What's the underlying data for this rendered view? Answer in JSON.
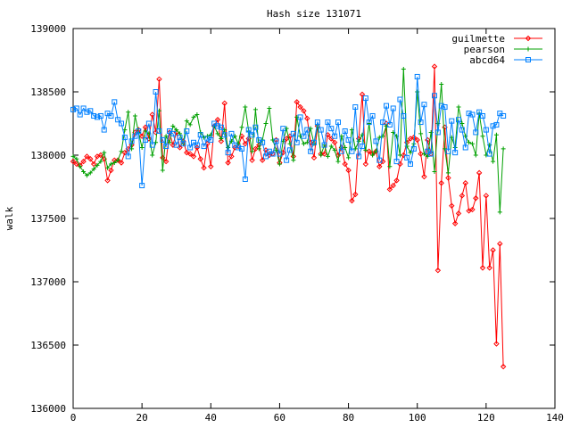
{
  "chart_data": {
    "type": "line",
    "title": "Hash size 131071",
    "xlabel": "",
    "ylabel": "walk",
    "xlim": [
      0,
      140
    ],
    "ylim": [
      136000,
      139000
    ],
    "xticks": [
      0,
      20,
      40,
      60,
      80,
      100,
      120,
      140
    ],
    "yticks": [
      136000,
      136500,
      137000,
      137500,
      138000,
      138500,
      139000
    ],
    "grid": false,
    "legend_position": "top-right",
    "series": [
      {
        "name": "guilmette",
        "color": "#ff0000",
        "marker": "diamond",
        "x": [
          0,
          1,
          2,
          3,
          4,
          5,
          6,
          7,
          8,
          9,
          10,
          11,
          12,
          13,
          14,
          15,
          16,
          17,
          18,
          19,
          20,
          21,
          22,
          23,
          24,
          25,
          26,
          27,
          28,
          29,
          30,
          31,
          32,
          33,
          34,
          35,
          36,
          37,
          38,
          39,
          40,
          41,
          42,
          43,
          44,
          45,
          46,
          47,
          48,
          49,
          50,
          51,
          52,
          53,
          54,
          55,
          56,
          57,
          58,
          59,
          60,
          61,
          62,
          63,
          64,
          65,
          66,
          67,
          68,
          69,
          70,
          71,
          72,
          73,
          74,
          75,
          76,
          77,
          78,
          79,
          80,
          81,
          82,
          83,
          84,
          85,
          86,
          87,
          88,
          89,
          90,
          91,
          92,
          93,
          94,
          95,
          96,
          97,
          98,
          99,
          100,
          101,
          102,
          103,
          104,
          105,
          106,
          107,
          108,
          109,
          110,
          111,
          112,
          113,
          114,
          115,
          116,
          117,
          118,
          119,
          120,
          121,
          122,
          123,
          124,
          125
        ],
        "values": [
          137950,
          137930,
          137920,
          137950,
          137990,
          137970,
          137930,
          137990,
          138000,
          137970,
          137800,
          137880,
          137960,
          137960,
          137940,
          138020,
          138050,
          138080,
          138180,
          138200,
          138150,
          138220,
          138130,
          138320,
          138180,
          138600,
          137980,
          137950,
          138180,
          138080,
          138180,
          138060,
          138110,
          138020,
          138010,
          137990,
          138060,
          137970,
          137900,
          138090,
          137910,
          138230,
          138280,
          138110,
          138410,
          137940,
          137990,
          138060,
          138070,
          138150,
          138090,
          138130,
          137960,
          138050,
          138080,
          137960,
          138040,
          138000,
          138010,
          138120,
          137940,
          138020,
          138130,
          138150,
          137990,
          138420,
          138380,
          138350,
          138290,
          138100,
          137980,
          138230,
          138010,
          138010,
          138160,
          138130,
          138100,
          138000,
          138060,
          137930,
          137880,
          137640,
          137690,
          138130,
          138480,
          137930,
          138030,
          138010,
          138030,
          137910,
          137950,
          138250,
          137730,
          137760,
          137800,
          137930,
          138000,
          138100,
          138130,
          138140,
          138120,
          138010,
          137830,
          138120,
          138010,
          138700,
          137090,
          137780,
          138220,
          137820,
          137600,
          137460,
          137540,
          137680,
          137780,
          137560,
          137570,
          137660,
          137860,
          137110,
          137680,
          137110,
          137250,
          136510,
          137300,
          136330
        ]
      },
      {
        "name": "pearson",
        "color": "#00a000",
        "marker": "plus",
        "x": [
          0,
          1,
          2,
          3,
          4,
          5,
          6,
          7,
          8,
          9,
          10,
          11,
          12,
          13,
          14,
          15,
          16,
          17,
          18,
          19,
          20,
          21,
          22,
          23,
          24,
          25,
          26,
          27,
          28,
          29,
          30,
          31,
          32,
          33,
          34,
          35,
          36,
          37,
          38,
          39,
          40,
          41,
          42,
          43,
          44,
          45,
          46,
          47,
          48,
          49,
          50,
          51,
          52,
          53,
          54,
          55,
          56,
          57,
          58,
          59,
          60,
          61,
          62,
          63,
          64,
          65,
          66,
          67,
          68,
          69,
          70,
          71,
          72,
          73,
          74,
          75,
          76,
          77,
          78,
          79,
          80,
          81,
          82,
          83,
          84,
          85,
          86,
          87,
          88,
          89,
          90,
          91,
          92,
          93,
          94,
          95,
          96,
          97,
          98,
          99,
          100,
          101,
          102,
          103,
          104,
          105,
          106,
          107,
          108,
          109,
          110,
          111,
          112,
          113,
          114,
          115,
          116,
          117,
          118,
          119,
          120,
          121,
          122,
          123,
          124,
          125
        ],
        "values": [
          137990,
          137970,
          137910,
          137870,
          137840,
          137860,
          137890,
          137920,
          137950,
          138020,
          137900,
          137930,
          137940,
          137960,
          138030,
          138200,
          138340,
          138050,
          138310,
          138180,
          138060,
          138190,
          138170,
          138000,
          138100,
          138350,
          137880,
          138150,
          138100,
          138230,
          138200,
          138170,
          138090,
          138270,
          138240,
          138300,
          138320,
          138180,
          138140,
          138150,
          138160,
          138230,
          138170,
          138130,
          138200,
          138060,
          138110,
          138150,
          138090,
          138220,
          138380,
          138190,
          138030,
          138360,
          138050,
          138120,
          138250,
          138370,
          138120,
          138040,
          137930,
          138110,
          138210,
          138090,
          137960,
          138300,
          138150,
          138090,
          138100,
          138210,
          138090,
          138240,
          138000,
          138080,
          137990,
          138070,
          138040,
          137950,
          138150,
          138060,
          137980,
          138200,
          138050,
          138110,
          138160,
          138040,
          138250,
          138000,
          138030,
          138140,
          138150,
          138230,
          137910,
          138180,
          138150,
          138000,
          138680,
          138070,
          138020,
          138090,
          138500,
          138170,
          138010,
          137990,
          138180,
          137870,
          138250,
          138560,
          138050,
          137860,
          138140,
          138060,
          138380,
          138250,
          138150,
          138100,
          138090,
          138000,
          138330,
          138150,
          138000,
          138080,
          137950,
          138160,
          137550,
          138050
        ]
      },
      {
        "name": "abcd64",
        "color": "#0080ff",
        "marker": "square",
        "x": [
          0,
          1,
          2,
          3,
          4,
          5,
          6,
          7,
          8,
          9,
          10,
          11,
          12,
          13,
          14,
          15,
          16,
          17,
          18,
          19,
          20,
          21,
          22,
          23,
          24,
          25,
          26,
          27,
          28,
          29,
          30,
          31,
          32,
          33,
          34,
          35,
          36,
          37,
          38,
          39,
          40,
          41,
          42,
          43,
          44,
          45,
          46,
          47,
          48,
          49,
          50,
          51,
          52,
          53,
          54,
          55,
          56,
          57,
          58,
          59,
          60,
          61,
          62,
          63,
          64,
          65,
          66,
          67,
          68,
          69,
          70,
          71,
          72,
          73,
          74,
          75,
          76,
          77,
          78,
          79,
          80,
          81,
          82,
          83,
          84,
          85,
          86,
          87,
          88,
          89,
          90,
          91,
          92,
          93,
          94,
          95,
          96,
          97,
          98,
          99,
          100,
          101,
          102,
          103,
          104,
          105,
          106,
          107,
          108,
          109,
          110,
          111,
          112,
          113,
          114,
          115,
          116,
          117,
          118,
          119,
          120,
          121,
          122,
          123,
          124,
          125
        ],
        "values": [
          138360,
          138370,
          138320,
          138370,
          138340,
          138350,
          138310,
          138300,
          138310,
          138200,
          138330,
          138310,
          138420,
          138280,
          138250,
          138140,
          137990,
          138110,
          138150,
          138190,
          137760,
          138120,
          138250,
          138080,
          138500,
          138190,
          138120,
          138070,
          138190,
          138170,
          138080,
          138140,
          138090,
          138190,
          138060,
          138100,
          138080,
          138160,
          138070,
          138130,
          138120,
          138250,
          138230,
          138220,
          138160,
          138020,
          138170,
          138080,
          138060,
          138050,
          137810,
          138200,
          138160,
          138220,
          138120,
          138100,
          137990,
          138030,
          138010,
          138110,
          138010,
          138210,
          137960,
          138040,
          138170,
          138100,
          138300,
          138150,
          138200,
          138030,
          138100,
          138260,
          138200,
          138080,
          138260,
          138210,
          138150,
          138260,
          138030,
          138190,
          138120,
          138030,
          138380,
          137990,
          138070,
          138450,
          138260,
          138310,
          138110,
          137960,
          138260,
          138390,
          138240,
          138370,
          137950,
          138440,
          138310,
          137980,
          137930,
          138050,
          138620,
          138260,
          138400,
          138030,
          138010,
          138470,
          138180,
          138390,
          138380,
          138030,
          138270,
          138020,
          138280,
          138200,
          138060,
          138330,
          138320,
          138180,
          138340,
          138310,
          138200,
          138010,
          138230,
          138240,
          138330,
          138310
        ]
      }
    ]
  }
}
